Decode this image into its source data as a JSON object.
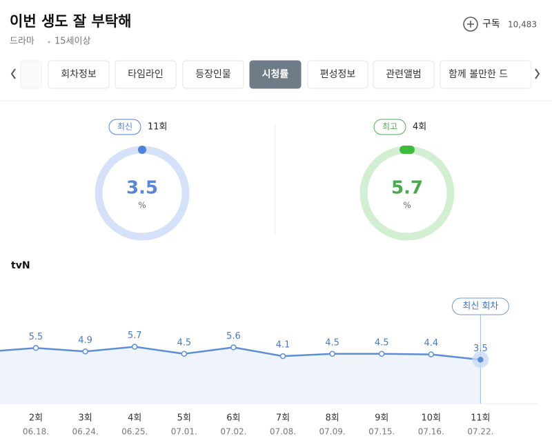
{
  "header": {
    "title": "이번 생도 잘 부탁해",
    "genre": "드라마",
    "age": "15세이상",
    "subscribe": "구독",
    "subscribers": "10,483"
  },
  "tabs": {
    "items": [
      "회차정보",
      "타임라인",
      "등장인물",
      "시청률",
      "편성정보",
      "관련앨범",
      "함께 볼만한 드"
    ],
    "active": 3
  },
  "summary": {
    "latest": {
      "badge": "최신",
      "episode": "11회",
      "value": "3.5",
      "unit": "%"
    },
    "best": {
      "badge": "최고",
      "episode": "4회",
      "value": "5.7",
      "unit": "%"
    }
  },
  "chart_data": {
    "type": "line",
    "title": "tvN",
    "categories": [
      "2회",
      "3회",
      "4회",
      "5회",
      "6회",
      "7회",
      "8회",
      "9회",
      "10회",
      "11회"
    ],
    "dates": [
      "06.18.",
      "06.24.",
      "06.25.",
      "07.01.",
      "07.02.",
      "07.08.",
      "07.09.",
      "07.15.",
      "07.16.",
      "07.22."
    ],
    "series": [
      {
        "name": "tvN",
        "color": "#5b8ed6",
        "values": [
          5.5,
          4.9,
          5.7,
          4.5,
          5.6,
          4.1,
          4.5,
          4.5,
          4.4,
          3.5
        ]
      }
    ],
    "ylim": [
      -4,
      16
    ],
    "annotation": "최신 회차"
  }
}
